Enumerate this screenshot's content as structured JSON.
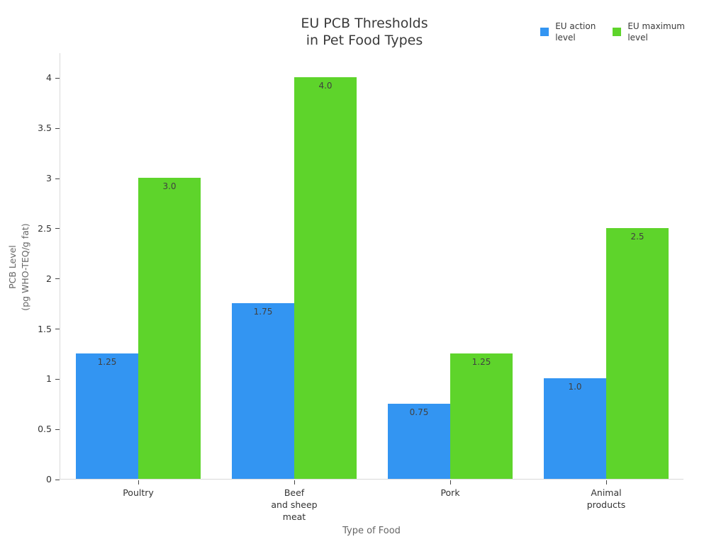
{
  "chart_data": {
    "type": "bar",
    "title": "EU PCB Thresholds in Pet Food Types",
    "title_lines": [
      "EU PCB Thresholds",
      "in Pet Food Types"
    ],
    "xlabel": "Type of Food",
    "ylabel": "PCB Level (pg WHO-TEQ/g fat)",
    "ylabel_lines": [
      "PCB Level",
      "(pg WHO-TEQ/g fat)"
    ],
    "categories": [
      "Poultry",
      "Beef and sheep meat",
      "Pork",
      "Animal products"
    ],
    "category_lines": [
      [
        "Poultry"
      ],
      [
        "Beef",
        "and sheep",
        "meat"
      ],
      [
        "Pork"
      ],
      [
        "Animal",
        "products"
      ]
    ],
    "series": [
      {
        "name": "EU action level",
        "name_lines": [
          "EU action",
          "level"
        ],
        "color": "#3395F2",
        "values": [
          1.25,
          1.75,
          0.75,
          1.0
        ],
        "value_labels": [
          "1.25",
          "1.75",
          "0.75",
          "1.0"
        ]
      },
      {
        "name": "EU maximum level",
        "name_lines": [
          "EU maximum",
          "level"
        ],
        "color": "#5ED42B",
        "values": [
          3.0,
          4.0,
          1.25,
          2.5
        ],
        "value_labels": [
          "3.0",
          "4.0",
          "1.25",
          "2.5"
        ]
      }
    ],
    "yticks": [
      0,
      0.5,
      1,
      1.5,
      2,
      2.5,
      3,
      3.5,
      4
    ],
    "ytick_labels": [
      "0",
      "0.5",
      "1",
      "1.5",
      "2",
      "2.5",
      "3",
      "3.5",
      "4"
    ],
    "ylim": [
      0,
      4.25
    ],
    "grid": false,
    "legend_position": "top-right",
    "value_label_position": "inside-top",
    "colors": {
      "axis_line": "#D9D9D9",
      "tick_text": "#333333",
      "title_text": "#3A3A3A",
      "axis_title_text": "#666666",
      "value_label_text": "#404040",
      "background": "#FFFFFF"
    }
  }
}
